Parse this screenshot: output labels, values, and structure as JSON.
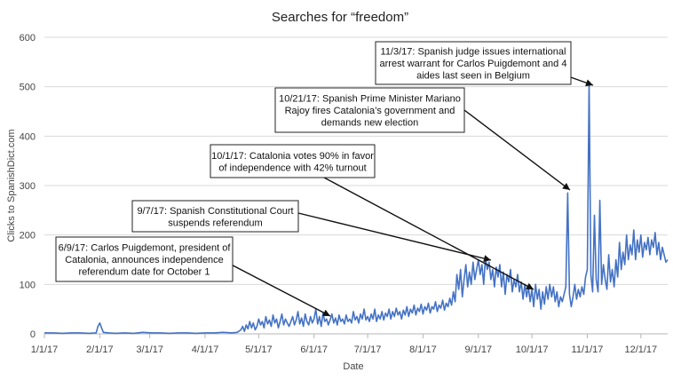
{
  "chart_data": {
    "type": "line",
    "title": "Searches for “freedom”",
    "xlabel": "Date",
    "ylabel": "Clicks to SpanishDict.com",
    "ylim": [
      0,
      600
    ],
    "y_ticks": [
      "0",
      "100",
      "200",
      "300",
      "400",
      "500",
      "600"
    ],
    "x_tick_labels": [
      "1/1/17",
      "2/1/17",
      "3/1/17",
      "4/1/17",
      "5/1/17",
      "6/1/17",
      "7/1/17",
      "8/1/17",
      "9/1/17",
      "10/1/17",
      "11/1/17",
      "12/1/17"
    ],
    "x_tick_days": [
      0,
      31,
      59,
      90,
      120,
      151,
      181,
      212,
      243,
      273,
      304,
      334
    ],
    "x_range_days": [
      0,
      349
    ],
    "grid": "horizontal",
    "series": [
      {
        "color": "#4472c4",
        "points": [
          [
            0,
            2
          ],
          [
            5,
            2
          ],
          [
            10,
            1
          ],
          [
            15,
            2
          ],
          [
            20,
            2
          ],
          [
            25,
            1
          ],
          [
            29,
            2
          ],
          [
            30,
            15
          ],
          [
            31,
            22
          ],
          [
            32,
            12
          ],
          [
            33,
            3
          ],
          [
            36,
            2
          ],
          [
            40,
            1
          ],
          [
            45,
            2
          ],
          [
            50,
            1
          ],
          [
            55,
            3
          ],
          [
            60,
            2
          ],
          [
            65,
            2
          ],
          [
            70,
            1
          ],
          [
            75,
            2
          ],
          [
            80,
            2
          ],
          [
            85,
            1
          ],
          [
            90,
            2
          ],
          [
            95,
            2
          ],
          [
            100,
            3
          ],
          [
            105,
            2
          ],
          [
            108,
            3
          ],
          [
            110,
            8
          ],
          [
            111,
            15
          ],
          [
            112,
            5
          ],
          [
            113,
            18
          ],
          [
            114,
            10
          ],
          [
            115,
            25
          ],
          [
            116,
            12
          ],
          [
            117,
            22
          ],
          [
            118,
            8
          ],
          [
            119,
            15
          ],
          [
            120,
            30
          ],
          [
            121,
            18
          ],
          [
            122,
            25
          ],
          [
            123,
            12
          ],
          [
            124,
            35
          ],
          [
            125,
            20
          ],
          [
            126,
            28
          ],
          [
            127,
            15
          ],
          [
            128,
            38
          ],
          [
            129,
            22
          ],
          [
            130,
            30
          ],
          [
            131,
            12
          ],
          [
            132,
            25
          ],
          [
            133,
            40
          ],
          [
            134,
            18
          ],
          [
            135,
            30
          ],
          [
            136,
            22
          ],
          [
            137,
            15
          ],
          [
            138,
            25
          ],
          [
            139,
            35
          ],
          [
            140,
            18
          ],
          [
            141,
            28
          ],
          [
            142,
            45
          ],
          [
            143,
            20
          ],
          [
            144,
            32
          ],
          [
            145,
            15
          ],
          [
            146,
            40
          ],
          [
            147,
            25
          ],
          [
            148,
            18
          ],
          [
            149,
            35
          ],
          [
            150,
            22
          ],
          [
            151,
            30
          ],
          [
            152,
            50
          ],
          [
            153,
            20
          ],
          [
            154,
            35
          ],
          [
            155,
            15
          ],
          [
            156,
            42
          ],
          [
            157,
            25
          ],
          [
            158,
            30
          ],
          [
            159,
            18
          ],
          [
            160,
            28
          ],
          [
            161,
            40
          ],
          [
            162,
            22
          ],
          [
            163,
            32
          ],
          [
            164,
            18
          ],
          [
            165,
            38
          ],
          [
            166,
            25
          ],
          [
            167,
            30
          ],
          [
            168,
            20
          ],
          [
            169,
            38
          ],
          [
            170,
            25
          ],
          [
            171,
            30
          ],
          [
            172,
            22
          ],
          [
            173,
            45
          ],
          [
            174,
            28
          ],
          [
            175,
            35
          ],
          [
            176,
            22
          ],
          [
            177,
            40
          ],
          [
            178,
            30
          ],
          [
            179,
            50
          ],
          [
            180,
            28
          ],
          [
            181,
            35
          ],
          [
            182,
            25
          ],
          [
            183,
            40
          ],
          [
            184,
            30
          ],
          [
            185,
            50
          ],
          [
            186,
            25
          ],
          [
            187,
            38
          ],
          [
            188,
            30
          ],
          [
            189,
            45
          ],
          [
            190,
            28
          ],
          [
            191,
            42
          ],
          [
            192,
            35
          ],
          [
            193,
            50
          ],
          [
            194,
            30
          ],
          [
            195,
            45
          ],
          [
            196,
            35
          ],
          [
            197,
            52
          ],
          [
            198,
            38
          ],
          [
            199,
            45
          ],
          [
            200,
            30
          ],
          [
            201,
            48
          ],
          [
            202,
            38
          ],
          [
            203,
            55
          ],
          [
            204,
            35
          ],
          [
            205,
            50
          ],
          [
            206,
            42
          ],
          [
            207,
            58
          ],
          [
            208,
            38
          ],
          [
            209,
            52
          ],
          [
            210,
            45
          ],
          [
            211,
            60
          ],
          [
            212,
            40
          ],
          [
            213,
            55
          ],
          [
            214,
            48
          ],
          [
            215,
            62
          ],
          [
            216,
            42
          ],
          [
            217,
            55
          ],
          [
            218,
            50
          ],
          [
            219,
            65
          ],
          [
            220,
            45
          ],
          [
            221,
            58
          ],
          [
            222,
            52
          ],
          [
            223,
            68
          ],
          [
            224,
            48
          ],
          [
            225,
            62
          ],
          [
            226,
            55
          ],
          [
            227,
            72
          ],
          [
            228,
            58
          ],
          [
            229,
            85
          ],
          [
            230,
            65
          ],
          [
            231,
            120
          ],
          [
            232,
            90
          ],
          [
            233,
            130
          ],
          [
            234,
            75
          ],
          [
            235,
            110
          ],
          [
            236,
            140
          ],
          [
            237,
            95
          ],
          [
            238,
            125
          ],
          [
            239,
            100
          ],
          [
            240,
            145
          ],
          [
            241,
            110
          ],
          [
            242,
            130
          ],
          [
            243,
            150
          ],
          [
            244,
            120
          ],
          [
            245,
            140
          ],
          [
            246,
            100
          ],
          [
            247,
            155
          ],
          [
            248,
            130
          ],
          [
            249,
            145
          ],
          [
            250,
            110
          ],
          [
            251,
            130
          ],
          [
            252,
            95
          ],
          [
            253,
            135
          ],
          [
            254,
            115
          ],
          [
            255,
            140
          ],
          [
            256,
            95
          ],
          [
            257,
            125
          ],
          [
            258,
            80
          ],
          [
            259,
            120
          ],
          [
            260,
            105
          ],
          [
            261,
            130
          ],
          [
            262,
            85
          ],
          [
            263,
            110
          ],
          [
            264,
            95
          ],
          [
            265,
            120
          ],
          [
            266,
            85
          ],
          [
            267,
            105
          ],
          [
            268,
            70
          ],
          [
            269,
            100
          ],
          [
            270,
            75
          ],
          [
            271,
            95
          ],
          [
            272,
            65
          ],
          [
            273,
            90
          ],
          [
            274,
            55
          ],
          [
            275,
            100
          ],
          [
            276,
            70
          ],
          [
            277,
            90
          ],
          [
            278,
            50
          ],
          [
            279,
            85
          ],
          [
            280,
            60
          ],
          [
            281,
            95
          ],
          [
            282,
            70
          ],
          [
            283,
            100
          ],
          [
            284,
            75
          ],
          [
            285,
            95
          ],
          [
            286,
            65
          ],
          [
            287,
            85
          ],
          [
            288,
            55
          ],
          [
            289,
            75
          ],
          [
            290,
            65
          ],
          [
            291,
            80
          ],
          [
            292,
            95
          ],
          [
            293,
            285
          ],
          [
            294,
            80
          ],
          [
            295,
            55
          ],
          [
            296,
            75
          ],
          [
            297,
            100
          ],
          [
            298,
            70
          ],
          [
            299,
            90
          ],
          [
            300,
            75
          ],
          [
            301,
            95
          ],
          [
            302,
            80
          ],
          [
            303,
            115
          ],
          [
            304,
            130
          ],
          [
            305,
            510
          ],
          [
            306,
            120
          ],
          [
            307,
            85
          ],
          [
            308,
            240
          ],
          [
            309,
            110
          ],
          [
            310,
            85
          ],
          [
            311,
            270
          ],
          [
            312,
            100
          ],
          [
            313,
            140
          ],
          [
            314,
            110
          ],
          [
            315,
            90
          ],
          [
            316,
            160
          ],
          [
            317,
            105
          ],
          [
            318,
            130
          ],
          [
            319,
            95
          ],
          [
            320,
            150
          ],
          [
            321,
            115
          ],
          [
            322,
            185
          ],
          [
            323,
            130
          ],
          [
            324,
            165
          ],
          [
            325,
            140
          ],
          [
            326,
            200
          ],
          [
            327,
            150
          ],
          [
            328,
            180
          ],
          [
            329,
            160
          ],
          [
            330,
            210
          ],
          [
            331,
            150
          ],
          [
            332,
            190
          ],
          [
            333,
            165
          ],
          [
            334,
            200
          ],
          [
            335,
            155
          ],
          [
            336,
            185
          ],
          [
            337,
            170
          ],
          [
            338,
            195
          ],
          [
            339,
            160
          ],
          [
            340,
            190
          ],
          [
            341,
            175
          ],
          [
            342,
            205
          ],
          [
            343,
            160
          ],
          [
            344,
            185
          ],
          [
            345,
            150
          ],
          [
            346,
            175
          ],
          [
            347,
            160
          ],
          [
            348,
            145
          ],
          [
            349,
            150
          ]
        ]
      }
    ],
    "annotations": [
      {
        "lines": [
          "11/3/17: Spanish judge issues international",
          "arrest warrant for Carlos Puigdemont and 4",
          "aides last seen in Belgium"
        ]
      },
      {
        "lines": [
          "10/21/17: Spanish Prime Minister Mariano",
          "Rajoy fires Catalonia’s government and",
          "demands new election"
        ]
      },
      {
        "lines": [
          "10/1/17: Catalonia votes 90% in favor",
          "of independence with 42% turnout"
        ]
      },
      {
        "lines": [
          "9/7/17: Spanish Constitutional Court",
          "suspends referendum"
        ]
      },
      {
        "lines": [
          "6/9/17: Carlos Puigdemont, president of",
          "Catalonia, announces independence",
          "referendum date for October 1"
        ]
      }
    ]
  }
}
